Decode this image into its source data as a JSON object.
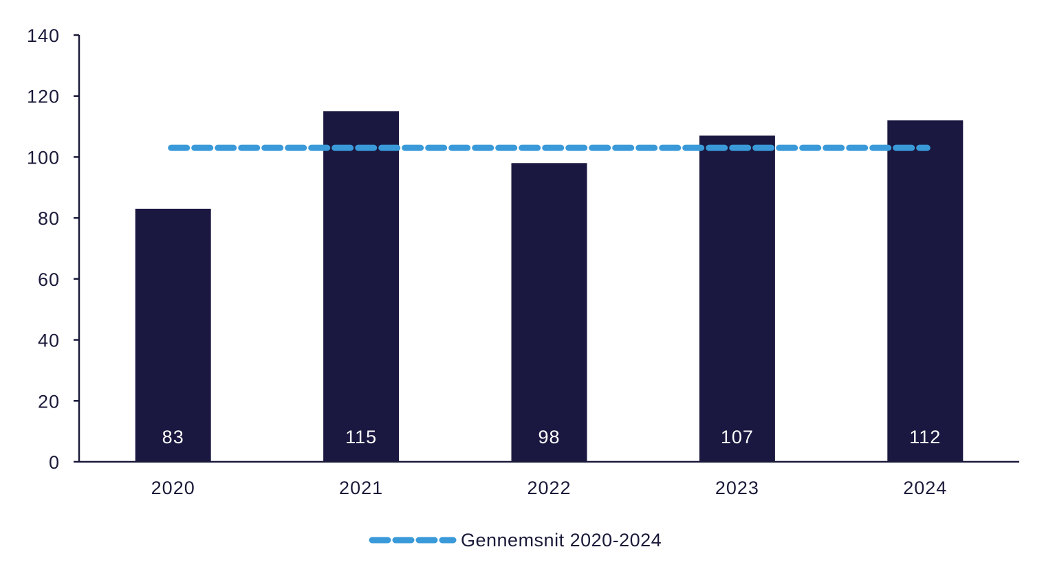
{
  "chart_data": {
    "type": "bar",
    "title": "",
    "xlabel": "",
    "ylabel": "",
    "categories": [
      "2020",
      "2021",
      "2022",
      "2023",
      "2024"
    ],
    "values": [
      83,
      115,
      98,
      107,
      112
    ],
    "data_labels": [
      "83",
      "115",
      "98",
      "107",
      "112"
    ],
    "ylim": [
      0,
      140
    ],
    "yticks": [
      0,
      20,
      40,
      60,
      80,
      100,
      120,
      140
    ],
    "ytick_labels": [
      "0",
      "20",
      "40",
      "60",
      "80",
      "100",
      "120",
      "140"
    ],
    "average_line": {
      "name": "Gennemsnit 2020-2024",
      "value": 103,
      "style": "dashed"
    },
    "grid": false,
    "legend_position": "bottom-center",
    "colors": {
      "bar": "#1a1840",
      "average": "#3a9ad9",
      "axis": "#1a1a3a",
      "bar_label": "#ffffff"
    }
  },
  "legend": {
    "label": "Gennemsnit 2020-2024"
  }
}
